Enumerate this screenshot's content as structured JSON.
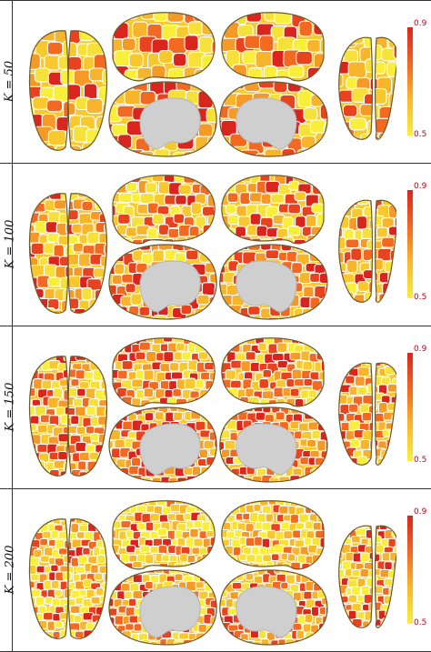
{
  "rows": [
    {
      "k_label": "K = 50",
      "max_label": "0.9",
      "min_label": "0.5"
    },
    {
      "k_label": "K = 100",
      "max_label": "0.9",
      "min_label": "0.5"
    },
    {
      "k_label": "K = 150",
      "max_label": "0.9",
      "min_label": "0.5"
    },
    {
      "k_label": "K = 200",
      "max_label": "0.9",
      "min_label": "0.5"
    }
  ],
  "colorscale": {
    "high": "#d9251d",
    "mid_high": "#f26a22",
    "mid_low": "#f7b52c",
    "low": "#f9ef3a"
  },
  "views": [
    "dorsal-view",
    "lateral-left",
    "lateral-right",
    "medial-left",
    "medial-right",
    "ventral-view"
  ]
}
